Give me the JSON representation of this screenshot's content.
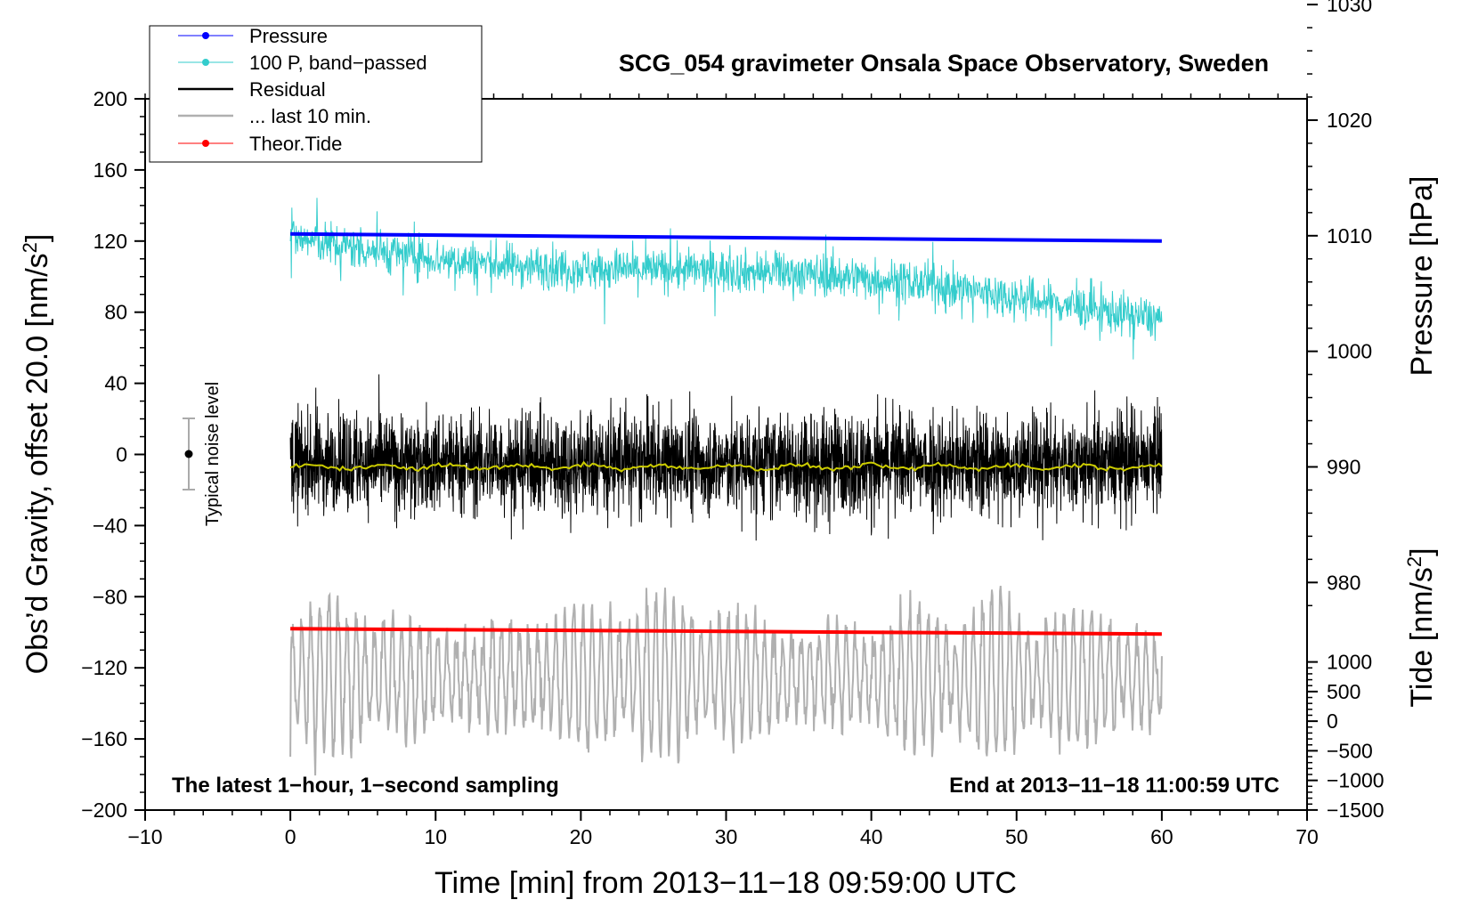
{
  "chart_data": {
    "type": "line",
    "title": "SCG_054 gravimeter Onsala Space Observatory, Sweden",
    "xlabel": "Time [min] from 2013−11−18 09:59:00 UTC",
    "ylabel_left": "Obs’d Gravity, offset 20.0 [nm/s²]",
    "ylabel_left_main": "Obs’d Gravity, offset 20.0 [nm/s",
    "ylabel_left_sup": "2",
    "ylabel_left_end": "]",
    "ylabel_right_pressure": "Pressure [hPa]",
    "ylabel_right_tide": "Tide [nm/s²]",
    "ylabel_right_tide_main": "Tide [nm/s",
    "ylabel_right_tide_sup": "2",
    "ylabel_right_tide_end": "]",
    "xlim": [
      -10,
      70
    ],
    "ylim": [
      -200,
      200
    ],
    "xticks": [
      -10,
      0,
      10,
      20,
      30,
      40,
      50,
      60,
      70
    ],
    "xtick_labels": [
      "−10",
      "0",
      "10",
      "20",
      "30",
      "40",
      "50",
      "60",
      "70"
    ],
    "yticks": [
      200,
      160,
      120,
      80,
      40,
      0,
      -40,
      -80,
      -120,
      -160,
      -200
    ],
    "ytick_labels": [
      "200",
      "160",
      "120",
      "80",
      "40",
      "0",
      "−40",
      "−80",
      "−120",
      "−160",
      "−200"
    ],
    "pressure_axis": {
      "ticks": [
        1030,
        1020,
        1010,
        1000,
        990,
        980
      ],
      "tick_labels": [
        "1030",
        "1020",
        "1010",
        "1000",
        "990",
        "980"
      ],
      "gravity_per_hpa": 6.5,
      "gravity_at_1010": 123
    },
    "tide_axis": {
      "ticks": [
        1000,
        500,
        0,
        -500,
        -1000,
        -1500
      ],
      "tick_labels": [
        "1000",
        "500",
        "0",
        "−500",
        "−1000",
        "−1500"
      ],
      "gravity_per_unit": 0.0333,
      "gravity_at_0": -150
    },
    "series": [
      {
        "name": "Pressure",
        "color": "#0000ff",
        "x_range": [
          0,
          60
        ],
        "y_start": 124,
        "y_end": 120
      },
      {
        "name": "100 P, band−passed",
        "color": "#33cccc",
        "x_range": [
          0,
          60
        ],
        "y_start": 122,
        "y_end": 80
      },
      {
        "name": "Residual",
        "color": "#000000",
        "x_range": [
          0,
          60
        ],
        "y_center": -5,
        "amplitude": 30
      },
      {
        "name": "... last 10 min.",
        "color": "#b0b0b0",
        "x_range": [
          0,
          60
        ],
        "y_center": -125,
        "amplitude": 45
      },
      {
        "name": "Theor.Tide",
        "color": "#ff0000",
        "x_range": [
          0,
          60
        ],
        "y_start": -98,
        "y_end": -101
      }
    ],
    "mean_line": {
      "color": "#cccc00",
      "y": -7
    },
    "noise_bar": {
      "label": "Typical noise level",
      "x": -7,
      "y": 0,
      "half_range": 20
    },
    "annotations": {
      "left": "The latest 1−hour, 1−second sampling",
      "right": "End at 2013−11−18 11:00:59 UTC"
    },
    "legend_position": "top-left"
  }
}
